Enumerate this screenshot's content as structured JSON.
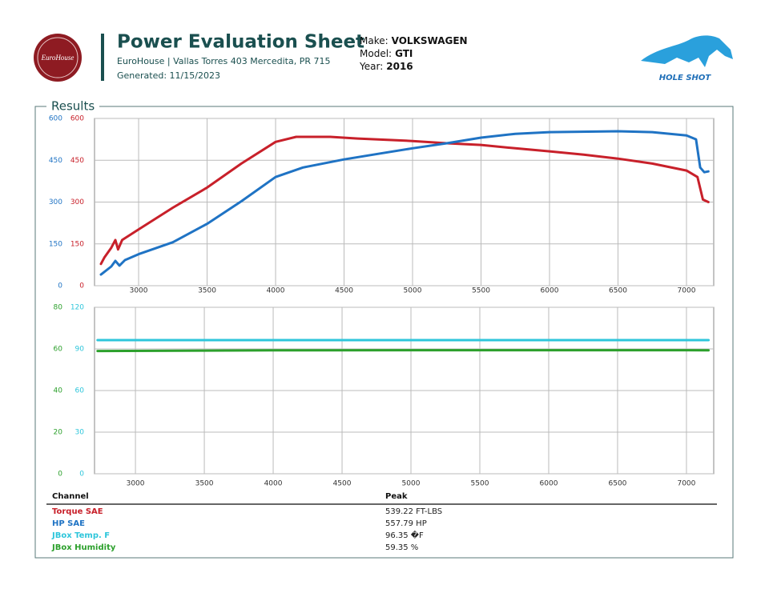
{
  "header": {
    "title": "Power Evaluation Sheet",
    "address": "EuroHouse | Vallas Torres 403 Mercedita, PR 715",
    "generated": "Generated: 11/15/2023",
    "logo_left": "EuroHouse",
    "logo_right": "HOLE SHOT"
  },
  "vehicle": [
    {
      "label": "Make:",
      "value": "VOLKSWAGEN"
    },
    {
      "label": "Model:",
      "value": "GTI"
    },
    {
      "label": "Year:",
      "value": "2016"
    }
  ],
  "section": "Results",
  "chart_data": [
    {
      "type": "line",
      "xlim": [
        2678,
        7199
      ],
      "xticks": [
        3000,
        3500,
        4000,
        4500,
        5000,
        5500,
        6000,
        6500,
        7000
      ],
      "ylim": [
        0,
        600
      ],
      "yticks": [
        0,
        150,
        300,
        450,
        600
      ],
      "y2lim": [
        0,
        600
      ],
      "y2ticks": [
        0,
        150,
        300,
        450,
        600
      ],
      "grid": true,
      "series": [
        {
          "name": "Torque SAE",
          "color": "#c8202a",
          "axis": "y",
          "x": [
            2725,
            2750,
            2800,
            2830,
            2850,
            2880,
            3000,
            3250,
            3500,
            3750,
            4000,
            4150,
            4400,
            4600,
            5000,
            5250,
            5500,
            5750,
            6000,
            6250,
            6500,
            6750,
            7000,
            7080,
            7120,
            7160
          ],
          "values": [
            78,
            101,
            136,
            164,
            130,
            164,
            202,
            280,
            352,
            438,
            516,
            534,
            534,
            528,
            519,
            511,
            505,
            493,
            482,
            470,
            456,
            438,
            413,
            390,
            309,
            300
          ]
        },
        {
          "name": "HP SAE",
          "color": "#1f73c4",
          "axis": "y2",
          "x": [
            2725,
            2800,
            2830,
            2860,
            2900,
            3000,
            3250,
            3500,
            3750,
            4000,
            4200,
            4500,
            4750,
            5000,
            5250,
            5500,
            5750,
            6000,
            6500,
            6750,
            7000,
            7070,
            7100,
            7130,
            7160
          ],
          "values": [
            40,
            69,
            89,
            72,
            92,
            113,
            156,
            222,
            303,
            390,
            424,
            453,
            473,
            493,
            511,
            531,
            545,
            551,
            554,
            551,
            539,
            525,
            424,
            407,
            410
          ]
        }
      ]
    },
    {
      "type": "line",
      "xlim": [
        2703,
        7198
      ],
      "xticks": [
        3000,
        3500,
        4000,
        4500,
        5000,
        5500,
        6000,
        6500,
        7000
      ],
      "ylim": [
        0,
        120
      ],
      "yticks": [
        0,
        30,
        60,
        90,
        120
      ],
      "y2lim": [
        0,
        80
      ],
      "y2ticks": [
        0,
        20,
        40,
        60,
        80
      ],
      "grid": true,
      "series": [
        {
          "name": "JBox Temp. F",
          "color": "#2ec6db",
          "axis": "y",
          "x": [
            2725,
            4000,
            5500,
            7000,
            7160
          ],
          "values": [
            96.35,
            96.35,
            96.35,
            96.35,
            96.35
          ]
        },
        {
          "name": "JBox Humidity",
          "color": "#2ca02c",
          "axis": "y2",
          "x": [
            2725,
            4000,
            5500,
            7000,
            7160
          ],
          "values": [
            59.0,
            59.3,
            59.4,
            59.4,
            59.3
          ]
        }
      ]
    }
  ],
  "table": {
    "columns": [
      "Channel",
      "Peak"
    ],
    "rows": [
      {
        "name": "Torque SAE",
        "color": "#c8202a",
        "peak": "539.22 FT-LBS"
      },
      {
        "name": "HP SAE",
        "color": "#1f73c4",
        "peak": "557.79 HP"
      },
      {
        "name": "JBox Temp. F",
        "color": "#2ec6db",
        "peak": "96.35 �F"
      },
      {
        "name": "JBox Humidity",
        "color": "#2ca02c",
        "peak": "59.35 %"
      }
    ]
  }
}
